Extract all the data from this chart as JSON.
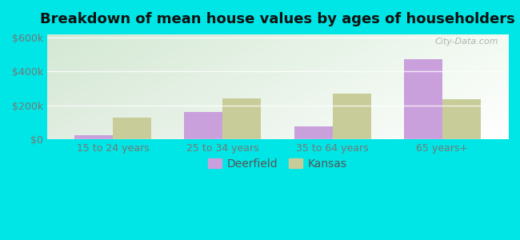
{
  "title": "Breakdown of mean house values by ages of householders",
  "categories": [
    "15 to 24 years",
    "25 to 34 years",
    "35 to 64 years",
    "65 years+"
  ],
  "deerfield_values": [
    25000,
    160000,
    75000,
    475000
  ],
  "kansas_values": [
    130000,
    240000,
    270000,
    235000
  ],
  "deerfield_color": "#c9a0dc",
  "kansas_color": "#c8cc99",
  "background_color": "#00e5e5",
  "ylabel_ticks": [
    0,
    200000,
    400000,
    600000
  ],
  "ylabel_labels": [
    "$0",
    "$200k",
    "$400k",
    "$600k"
  ],
  "ylim": [
    0,
    620000
  ],
  "legend_labels": [
    "Deerfield",
    "Kansas"
  ],
  "bar_width": 0.35,
  "title_fontsize": 13,
  "tick_fontsize": 9,
  "legend_fontsize": 10,
  "watermark": "City-Data.com",
  "gradient_top": "#e8f5e0",
  "gradient_bottom": "#d4ecc8",
  "gradient_right": "#f8fffa"
}
